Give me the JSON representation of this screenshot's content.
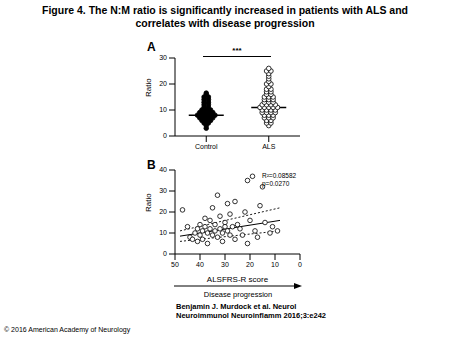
{
  "title": "Figure 4. The N:M ratio is significantly increased in patients with ALS and correlates with disease progression",
  "citation": "Benjamin J. Murdock et al. Neurol Neuroimmunol Neuroinflamm 2016;3:e242",
  "copyright": "© 2016 American Academy of Neurology",
  "chart_data": [
    {
      "panel": "A",
      "type": "dot_plot",
      "ylabel": "Ratio",
      "ylim": [
        0,
        30
      ],
      "yticks": [
        0,
        10,
        20,
        30
      ],
      "series": [
        {
          "name": "Control",
          "marker": "filled",
          "color": "#000000",
          "values": [
            3,
            4,
            5,
            5,
            6,
            6,
            6,
            7,
            7,
            7,
            7,
            8,
            8,
            8,
            8,
            8,
            9,
            9,
            9,
            9,
            10,
            10,
            10,
            11,
            11,
            12,
            12,
            13,
            13,
            14,
            14,
            15,
            15,
            16,
            16.5
          ]
        },
        {
          "name": "ALS",
          "marker": "open",
          "color": "#000000",
          "values": [
            4,
            5,
            5,
            6,
            6,
            7,
            7,
            7,
            8,
            8,
            8,
            9,
            9,
            9,
            9,
            10,
            10,
            10,
            10,
            11,
            11,
            11,
            11,
            11,
            12,
            12,
            12,
            12,
            13,
            13,
            13,
            14,
            14,
            14,
            15,
            15,
            15,
            16,
            16,
            17,
            17,
            18,
            18,
            19,
            20,
            20,
            21,
            22,
            23,
            24,
            25,
            25,
            26
          ]
        }
      ],
      "medians": [
        8,
        11
      ],
      "annotations": [
        "***"
      ]
    },
    {
      "panel": "B",
      "type": "scatter",
      "xlabel": "ALSFRS-R score",
      "subxlabel": "Disease progression",
      "ylabel": "Ratio",
      "xlim": [
        50,
        0
      ],
      "xticks": [
        50,
        40,
        30,
        20,
        10,
        0
      ],
      "ylim": [
        0,
        40
      ],
      "yticks": [
        0,
        10,
        20,
        30,
        40
      ],
      "marker": "open",
      "color": "#000000",
      "x": [
        47,
        45,
        44,
        43,
        42,
        41,
        41,
        40,
        40,
        39,
        39,
        38,
        38,
        37,
        37,
        36,
        36,
        35,
        35,
        34,
        34,
        33,
        33,
        32,
        32,
        31,
        31,
        30,
        30,
        29,
        29,
        28,
        28,
        27,
        26,
        26,
        25,
        24,
        23,
        22,
        21,
        21,
        20,
        19,
        18,
        17,
        16,
        15,
        14,
        12,
        11,
        9
      ],
      "y": [
        21,
        13,
        8,
        7,
        10,
        6,
        12,
        9,
        14,
        7,
        11,
        13,
        17,
        5,
        10,
        12,
        16,
        9,
        22,
        11,
        14,
        8,
        28,
        12,
        18,
        10,
        6,
        15,
        13,
        11,
        24,
        9,
        19,
        13,
        7,
        25,
        14,
        12,
        9,
        20,
        5,
        35,
        16,
        37,
        11,
        8,
        23,
        32,
        15,
        10,
        13,
        11
      ],
      "fit": {
        "x": [
          48,
          8
        ],
        "y": [
          8.5,
          16
        ],
        "line_style": "solid"
      },
      "band_upper": {
        "x": [
          48,
          8
        ],
        "y": [
          11,
          22
        ],
        "line_style": "dotted"
      },
      "band_lower": {
        "x": [
          48,
          8
        ],
        "y": [
          6,
          11
        ],
        "line_style": "dotted"
      },
      "annotations": [
        "R²=0.08582",
        "p=0.0270"
      ]
    }
  ]
}
